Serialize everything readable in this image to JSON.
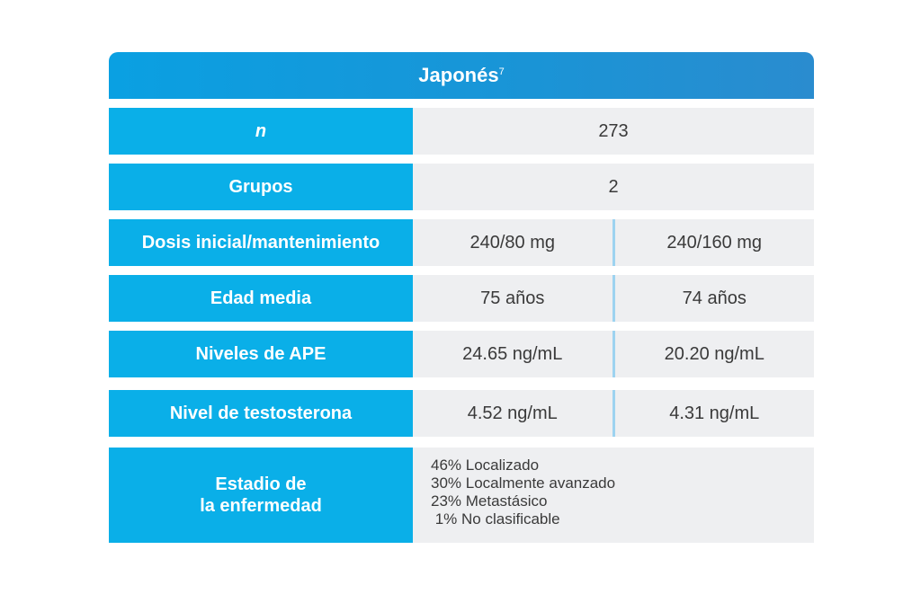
{
  "header": {
    "title": "Japonés",
    "ref": "7"
  },
  "rows": {
    "n": {
      "label": "n",
      "value": "273"
    },
    "grupos": {
      "label": "Grupos",
      "value": "2"
    },
    "dosis": {
      "label": "Dosis inicial/mantenimiento",
      "left": "240/80 mg",
      "right": "240/160 mg"
    },
    "edad": {
      "label": "Edad media",
      "left": "75 años",
      "right": "74 años"
    },
    "ape": {
      "label": "Niveles de APE",
      "left": "24.65 ng/mL",
      "right": "20.20 ng/mL"
    },
    "testosterona": {
      "label": "Nivel de testosterona",
      "left": "4.52 ng/mL",
      "right": "4.31 ng/mL"
    },
    "estadio": {
      "label_line1": "Estadio de",
      "label_line2": "la enfermedad",
      "items": [
        "46% Localizado",
        "30% Localmente avanzado",
        "23% Metastásico",
        " 1% No clasificable"
      ]
    }
  },
  "colors": {
    "header": "#1a94d6",
    "label_bg": "#0aafe8",
    "value_bg": "#eeeff1",
    "divider": "#9dd3f0"
  }
}
